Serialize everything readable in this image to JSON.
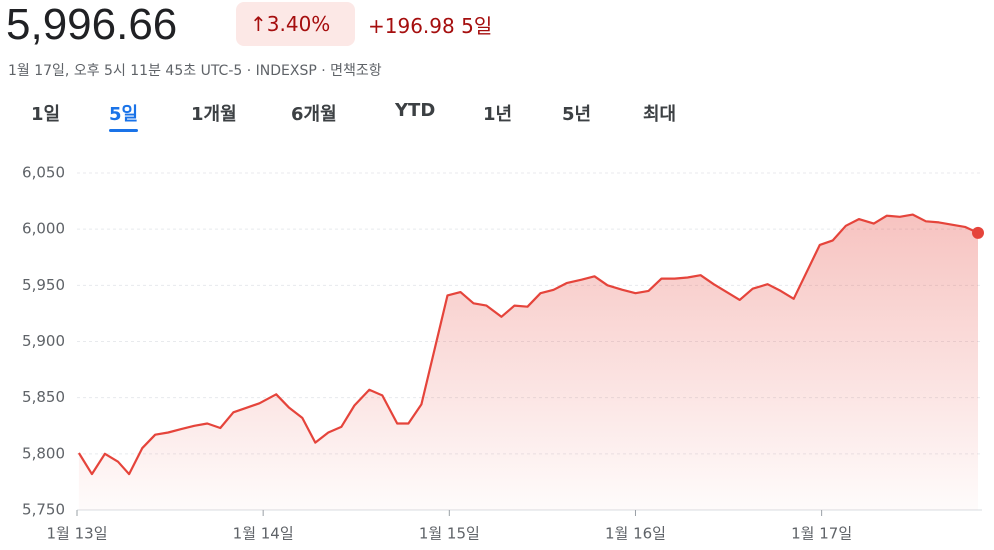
{
  "header": {
    "price": "5,996.66",
    "change_pct": "3.40%",
    "change_abs": "+196.98",
    "period": "5일",
    "meta": "1월 17일, 오후 5시 11분 45초 UTC-5 · INDEXSP · 면책조항"
  },
  "tabs": {
    "items": [
      "1일",
      "5일",
      "1개월",
      "6개월",
      "YTD",
      "1년",
      "5년",
      "최대"
    ],
    "active": 1
  },
  "chart_data": {
    "type": "line",
    "x": [
      13.01,
      13.08,
      13.15,
      13.22,
      13.28,
      13.35,
      13.42,
      13.49,
      13.56,
      13.63,
      13.7,
      13.77,
      13.84,
      13.91,
      13.98,
      14.07,
      14.14,
      14.21,
      14.28,
      14.35,
      14.42,
      14.49,
      14.57,
      14.64,
      14.72,
      14.78,
      14.85,
      14.99,
      15.06,
      15.13,
      15.2,
      15.28,
      15.35,
      15.42,
      15.49,
      15.56,
      15.63,
      15.71,
      15.78,
      15.85,
      15.93,
      16.0,
      16.07,
      16.14,
      16.21,
      16.28,
      16.35,
      16.42,
      16.49,
      16.56,
      16.63,
      16.71,
      16.78,
      16.85,
      16.99,
      17.06,
      17.13,
      17.2,
      17.28,
      17.35,
      17.42,
      17.49,
      17.56,
      17.63,
      17.7,
      17.77,
      17.84
    ],
    "series": [
      {
        "color": "#e5443b",
        "values": [
          5800.7,
          5782,
          5800,
          5793,
          5782,
          5805,
          5817,
          5819,
          5822,
          5825,
          5827,
          5823,
          5837,
          5841,
          5845,
          5853,
          5841,
          5832,
          5810,
          5819,
          5824,
          5843,
          5857,
          5852,
          5827,
          5827,
          5844,
          5941,
          5944,
          5934,
          5932,
          5922,
          5932,
          5931,
          5943,
          5946,
          5952,
          5955,
          5958,
          5950,
          5946,
          5943,
          5945,
          5956,
          5956,
          5957,
          5959,
          5951,
          5944,
          5937,
          5947,
          5951,
          5945,
          5938,
          5986,
          5990,
          6003,
          6009,
          6005,
          6012,
          6011,
          6013,
          6007,
          6006,
          6004,
          6002,
          5996.66
        ]
      }
    ],
    "xlim": [
      13,
      17.84
    ],
    "xticks": [
      {
        "value": 13,
        "label": "1월 13일"
      },
      {
        "value": 14,
        "label": "1월 14일"
      },
      {
        "value": 15,
        "label": "1월 15일"
      },
      {
        "value": 16,
        "label": "1월 16일"
      },
      {
        "value": 17,
        "label": "1월 17일"
      }
    ],
    "ylim": [
      5750,
      6050
    ],
    "yticks": [
      {
        "value": 5750,
        "label": "5,750"
      },
      {
        "value": 5800,
        "label": "5,800"
      },
      {
        "value": 5850,
        "label": "5,850"
      },
      {
        "value": 5900,
        "label": "5,900"
      },
      {
        "value": 5950,
        "label": "5,950"
      },
      {
        "value": 6000,
        "label": "6,000"
      },
      {
        "value": 6050,
        "label": "6,050"
      }
    ],
    "grid": true
  }
}
